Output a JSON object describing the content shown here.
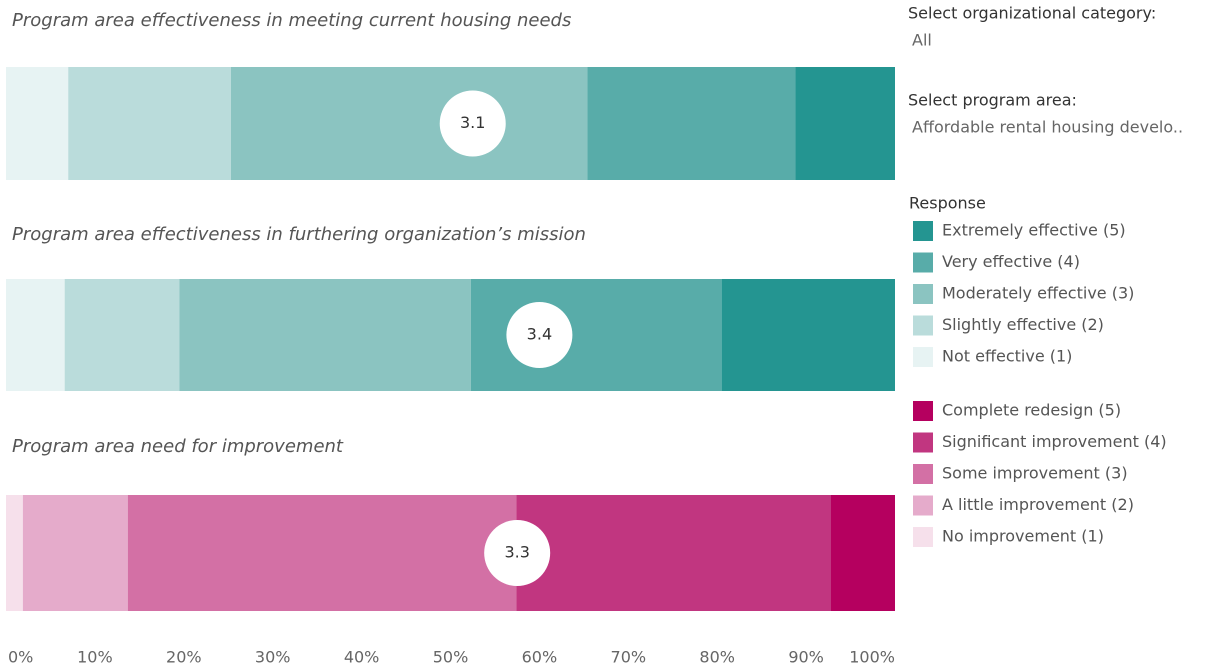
{
  "filters": [
    {
      "label": "Select organizational category:",
      "value": "All"
    },
    {
      "label": "Select program area:",
      "value": "Affordable rental housing develo.."
    }
  ],
  "legends": [
    {
      "title": "Response",
      "items": [
        {
          "name": "Extremely effective (5)",
          "color": "#249591"
        },
        {
          "name": "Very effective (4)",
          "color": "#58aca9"
        },
        {
          "name": "Moderately effective (3)",
          "color": "#8bc4c1"
        },
        {
          "name": "Slightly effective (2)",
          "color": "#badcdb"
        },
        {
          "name": "Not effective (1)",
          "color": "#e7f3f3"
        }
      ]
    },
    {
      "items": [
        {
          "name": "Complete redesign (5)",
          "color": "#b5005f"
        },
        {
          "name": "Significant improvement (4)",
          "color": "#c13680"
        },
        {
          "name": "Some improvement (3)",
          "color": "#d370a5"
        },
        {
          "name": "A little improvement (2)",
          "color": "#e5abcb"
        },
        {
          "name": "No improvement (1)",
          "color": "#f6e0eb"
        }
      ]
    }
  ],
  "chart_data": [
    {
      "type": "bar",
      "title": "Program area effectiveness in meeting current housing needs",
      "legend": 0,
      "values": [
        11.2,
        23.4,
        40.1,
        18.3,
        7.0
      ],
      "mean": 3.1
    },
    {
      "type": "bar",
      "title": "Program area effectiveness in furthering organization’s mission",
      "legend": 0,
      "values": [
        19.5,
        28.2,
        32.8,
        12.9,
        6.6
      ],
      "mean": 3.4
    },
    {
      "type": "bar",
      "title": "Program area need for improvement",
      "legend": 1,
      "values": [
        7.2,
        35.4,
        43.7,
        11.8,
        1.9
      ],
      "mean": 3.3,
      "xlim": [
        0,
        100
      ],
      "xticks": [
        {
          "value": 0,
          "label": "0%"
        },
        {
          "value": 10,
          "label": "10%"
        },
        {
          "value": 20,
          "label": "20%"
        },
        {
          "value": 30,
          "label": "30%"
        },
        {
          "value": 40,
          "label": "40%"
        },
        {
          "value": 50,
          "label": "50%"
        },
        {
          "value": 60,
          "label": "60%"
        },
        {
          "value": 70,
          "label": "70%"
        },
        {
          "value": 80,
          "label": "80%"
        },
        {
          "value": 90,
          "label": "90%"
        },
        {
          "value": 100,
          "label": "100%"
        }
      ]
    }
  ]
}
